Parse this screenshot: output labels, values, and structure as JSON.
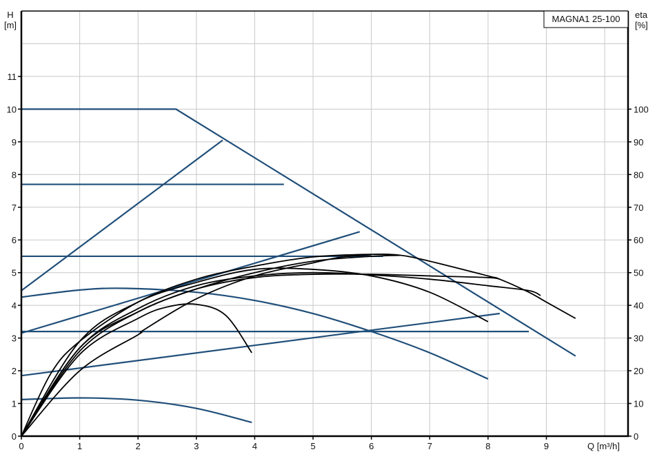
{
  "chart_data": {
    "type": "line",
    "title": "MAGNA1 25-100",
    "xlabel": "Q [m³/h]",
    "ylabel_left": [
      "H",
      "[m]"
    ],
    "ylabel_right": [
      "eta",
      "[%]"
    ],
    "xlim": [
      0,
      10.4
    ],
    "ylim": [
      0,
      13
    ],
    "y2lim": [
      0,
      130
    ],
    "grid": true,
    "x_ticks": [
      "0",
      "1",
      "2",
      "3",
      "4",
      "5",
      "6",
      "7",
      "8",
      "9"
    ],
    "y_ticks": [
      "0",
      "1",
      "2",
      "3",
      "4",
      "5",
      "6",
      "7",
      "8",
      "9",
      "10",
      "11"
    ],
    "y2_ticks": [
      "0",
      "10",
      "20",
      "30",
      "40",
      "50",
      "60",
      "70",
      "80",
      "90",
      "100"
    ],
    "colors": {
      "head": "#1f4e79",
      "efficiency": "#000000",
      "grid": "#c8c8c8"
    },
    "head_series": [
      {
        "points": [
          [
            0,
            10
          ],
          [
            2.65,
            10
          ],
          [
            9.5,
            2.45
          ]
        ]
      },
      {
        "points": [
          [
            0,
            7.7
          ],
          [
            4.5,
            7.7
          ]
        ]
      },
      {
        "points": [
          [
            0,
            5.5
          ],
          [
            6.2,
            5.5
          ]
        ]
      },
      {
        "points": [
          [
            0,
            3.2
          ],
          [
            8.7,
            3.2
          ]
        ]
      },
      {
        "points": [
          [
            0,
            4.45
          ],
          [
            3.45,
            9.05
          ]
        ]
      },
      {
        "points": [
          [
            0,
            3.15
          ],
          [
            5.8,
            6.25
          ]
        ]
      },
      {
        "points": [
          [
            0,
            1.85
          ],
          [
            8.2,
            3.75
          ]
        ]
      },
      {
        "points": [
          [
            0,
            4.25
          ],
          [
            1,
            4.47
          ],
          [
            1.8,
            4.52
          ],
          [
            3,
            4.4
          ],
          [
            4,
            4.15
          ],
          [
            5,
            3.75
          ],
          [
            6,
            3.2
          ],
          [
            7,
            2.55
          ],
          [
            8,
            1.75
          ]
        ],
        "smooth": true
      },
      {
        "points": [
          [
            0,
            1.12
          ],
          [
            1,
            1.17
          ],
          [
            2,
            1.1
          ],
          [
            3,
            0.85
          ],
          [
            3.95,
            0.42
          ]
        ],
        "smooth": true
      }
    ],
    "efficiency_series": [
      {
        "points": [
          [
            0,
            0
          ],
          [
            0.5,
            19
          ],
          [
            1,
            29
          ],
          [
            2,
            41
          ],
          [
            3,
            48
          ],
          [
            4,
            52
          ],
          [
            5,
            54.8
          ],
          [
            6,
            55.6
          ],
          [
            6.5,
            55.3
          ],
          [
            7,
            53.5
          ],
          [
            8,
            49
          ],
          [
            8.2,
            48
          ],
          [
            8.7,
            44
          ],
          [
            9,
            41
          ],
          [
            9.5,
            36
          ]
        ]
      },
      {
        "points": [
          [
            0,
            0
          ],
          [
            1,
            29
          ],
          [
            2,
            41
          ],
          [
            3,
            47
          ],
          [
            4,
            51
          ],
          [
            5,
            51
          ],
          [
            6,
            49
          ],
          [
            7,
            44
          ],
          [
            8,
            35
          ]
        ]
      },
      {
        "points": [
          [
            0,
            0
          ],
          [
            1,
            27
          ],
          [
            2,
            38
          ],
          [
            3,
            45
          ],
          [
            4,
            48.5
          ],
          [
            5,
            49.5
          ],
          [
            6,
            49.5
          ],
          [
            7,
            49
          ],
          [
            8,
            48.5
          ],
          [
            8.2,
            48
          ]
        ]
      },
      {
        "points": [
          [
            0,
            0
          ],
          [
            1,
            27
          ],
          [
            2,
            39
          ],
          [
            3,
            46
          ],
          [
            4,
            49
          ],
          [
            5,
            50
          ],
          [
            6,
            49.3
          ],
          [
            7,
            48
          ],
          [
            8,
            46
          ],
          [
            8.7,
            44.5
          ],
          [
            8.9,
            43
          ]
        ]
      },
      {
        "points": [
          [
            0,
            0
          ],
          [
            1,
            25
          ],
          [
            2,
            36
          ],
          [
            2.5,
            39.5
          ],
          [
            3,
            40.3
          ],
          [
            3.5,
            37
          ],
          [
            3.95,
            25.5
          ]
        ]
      },
      {
        "points": [
          [
            0,
            0
          ],
          [
            1,
            20
          ],
          [
            2,
            31
          ],
          [
            2.1,
            32.5
          ],
          [
            3,
            42
          ],
          [
            4,
            49
          ],
          [
            5,
            53
          ],
          [
            5.5,
            54.8
          ],
          [
            6,
            55.5
          ]
        ]
      },
      {
        "points": [
          [
            0,
            0
          ],
          [
            1,
            26
          ],
          [
            2,
            38
          ],
          [
            3,
            45
          ],
          [
            4,
            50
          ],
          [
            5,
            53.5
          ],
          [
            6,
            55
          ],
          [
            6.5,
            55.3
          ]
        ]
      }
    ]
  }
}
